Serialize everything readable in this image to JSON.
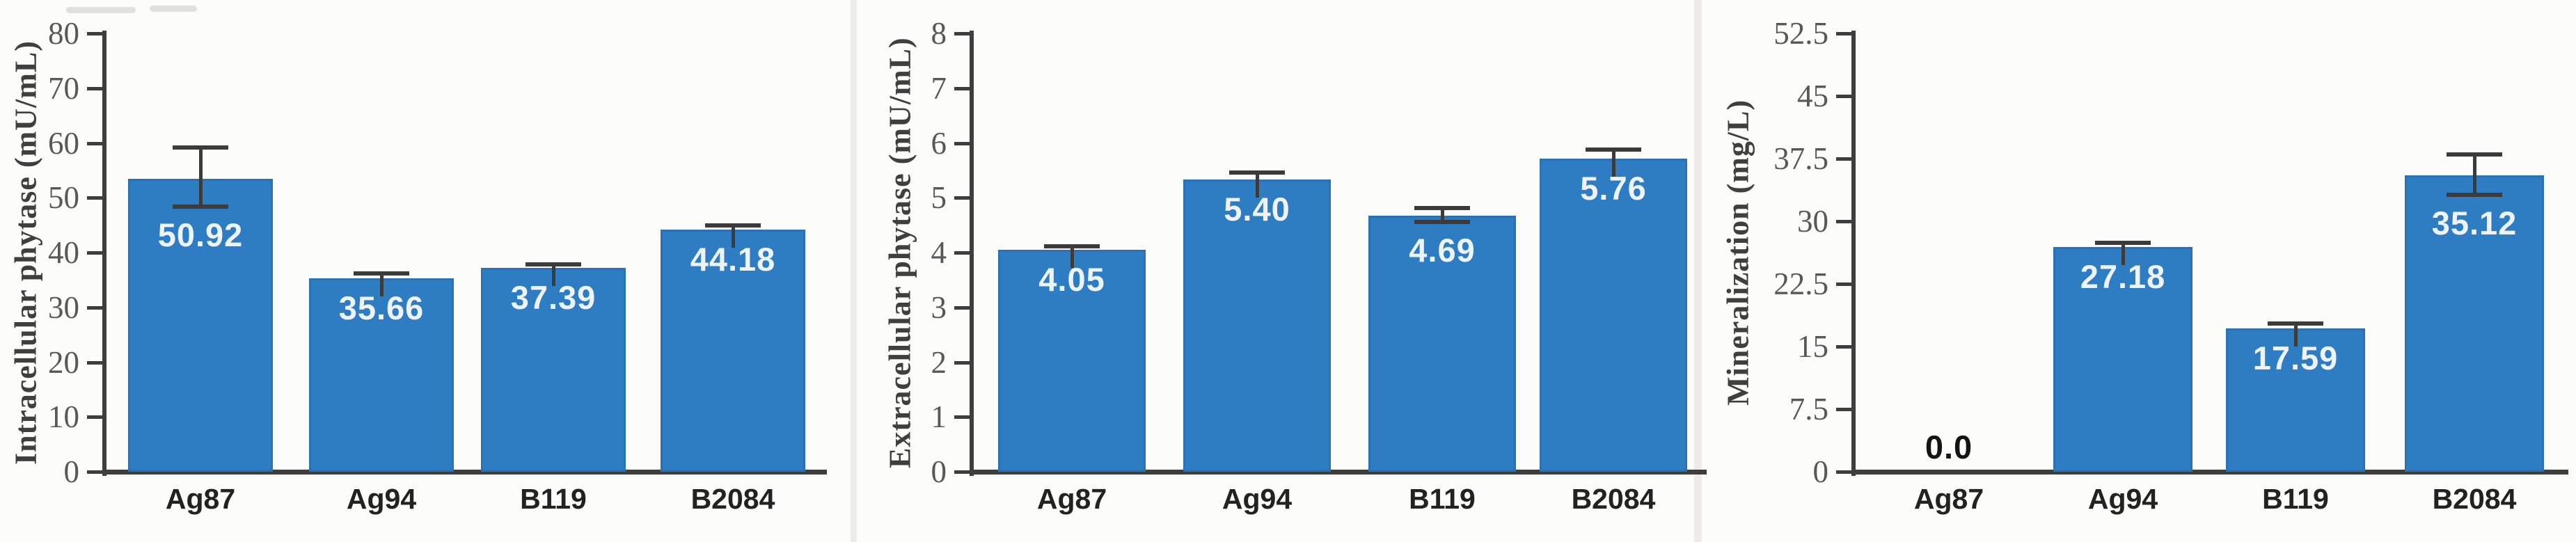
{
  "colors": {
    "bar": "#2e7cc2",
    "bar_edge": "#1b538a",
    "error_bar": "#3b3b3b",
    "axis": "#3e3e3e",
    "tick_label": "#585858",
    "category_label": "#222222",
    "value_label_inside_bar": "#eef3f8",
    "zero_value_label": "#141414",
    "background": "#fcfcfa"
  },
  "chart_data": [
    {
      "type": "bar",
      "ylabel": "Intracellular phytase (mU/mL)",
      "xlabel": "",
      "ylim": [
        0,
        80
      ],
      "grid": false,
      "legend_position": "none",
      "yticks": [
        "80",
        "70",
        "60",
        "50",
        "40",
        "30",
        "20",
        "10",
        "0"
      ],
      "categories": [
        "Ag87",
        "Ag94",
        "B119",
        "B2084"
      ],
      "values": [
        50.92,
        35.66,
        37.39,
        44.18
      ],
      "points": [
        {
          "label": "50.92",
          "value": 50.92,
          "bar": 53.5,
          "err_hi": 59.2,
          "err_lo": 48.4,
          "zero": false
        },
        {
          "label": "35.66",
          "value": 35.66,
          "bar": 35.3,
          "err_hi": 36.2,
          "err_lo": null,
          "zero": false
        },
        {
          "label": "37.39",
          "value": 37.39,
          "bar": 37.2,
          "err_hi": 37.9,
          "err_lo": null,
          "zero": false
        },
        {
          "label": "44.18",
          "value": 44.18,
          "bar": 44.2,
          "err_hi": 44.9,
          "err_lo": null,
          "zero": false
        }
      ]
    },
    {
      "type": "bar",
      "ylabel": "Extracellular phytase (mU/mL)",
      "xlabel": "",
      "ylim": [
        0,
        8
      ],
      "grid": false,
      "legend_position": "none",
      "yticks": [
        "8",
        "7",
        "6",
        "5",
        "4",
        "3",
        "2",
        "1",
        "0"
      ],
      "categories": [
        "Ag87",
        "Ag94",
        "B119",
        "B2084"
      ],
      "values": [
        4.05,
        5.4,
        4.69,
        5.76
      ],
      "points": [
        {
          "label": "4.05",
          "value": 4.05,
          "bar": 4.05,
          "err_hi": 4.12,
          "err_lo": null,
          "zero": false
        },
        {
          "label": "5.40",
          "value": 5.4,
          "bar": 5.33,
          "err_hi": 5.46,
          "err_lo": null,
          "zero": false
        },
        {
          "label": "4.69",
          "value": 4.69,
          "bar": 4.67,
          "err_hi": 4.81,
          "err_lo": 4.56,
          "zero": false
        },
        {
          "label": "5.76",
          "value": 5.76,
          "bar": 5.71,
          "err_hi": 5.88,
          "err_lo": null,
          "zero": false
        }
      ]
    },
    {
      "type": "bar",
      "ylabel": "Mineralization (mg/L)",
      "xlabel": "",
      "ylim": [
        0,
        52.5
      ],
      "grid": false,
      "legend_position": "none",
      "yticks": [
        "52.5",
        "45",
        "37.5",
        "30",
        "22.5",
        "15",
        "7.5",
        "0"
      ],
      "categories": [
        "Ag87",
        "Ag94",
        "B119",
        "B2084"
      ],
      "values": [
        0.0,
        27.18,
        17.59,
        35.12
      ],
      "points": [
        {
          "label": "0.0",
          "value": 0.0,
          "bar": 0,
          "err_hi": null,
          "err_lo": null,
          "zero": true
        },
        {
          "label": "27.18",
          "value": 27.18,
          "bar": 26.9,
          "err_hi": 27.45,
          "err_lo": null,
          "zero": false
        },
        {
          "label": "17.59",
          "value": 17.59,
          "bar": 17.2,
          "err_hi": 17.75,
          "err_lo": null,
          "zero": false
        },
        {
          "label": "35.12",
          "value": 35.12,
          "bar": 35.5,
          "err_hi": 38.0,
          "err_lo": 33.2,
          "zero": false
        }
      ]
    }
  ]
}
